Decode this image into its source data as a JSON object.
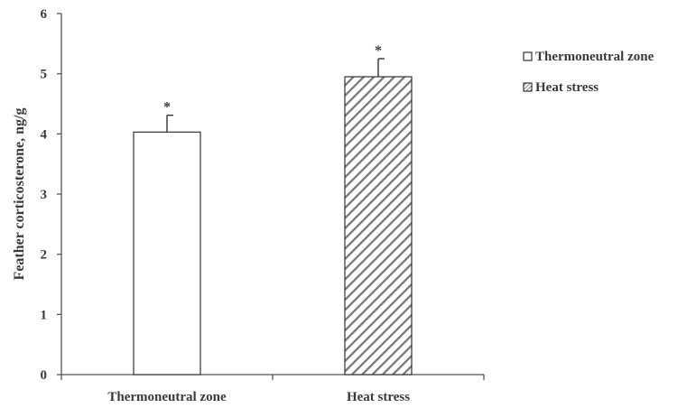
{
  "chart_data": {
    "type": "bar",
    "title": "",
    "xlabel": "",
    "ylabel": "Feather corticosterone, ng/g",
    "ylim": [
      0,
      6
    ],
    "yticks": [
      "0",
      "1",
      "2",
      "3",
      "4",
      "5",
      "6"
    ],
    "categories": [
      "Thermoneutral zone",
      "Heat stress"
    ],
    "values": [
      4.03,
      4.95
    ],
    "errors": [
      0.28,
      0.3
    ],
    "significance": [
      "*",
      "*"
    ],
    "legend": {
      "placement": "top-right",
      "entries": [
        {
          "label": "Thermoneutral zone",
          "pattern": "open"
        },
        {
          "label": "Heat stress",
          "pattern": "diagonal-hatch"
        }
      ]
    },
    "colors": {
      "axis": "#555555",
      "bar_outline": "#333333",
      "hatch": "#777777",
      "text": "#3a3a3a"
    },
    "grid": false
  }
}
